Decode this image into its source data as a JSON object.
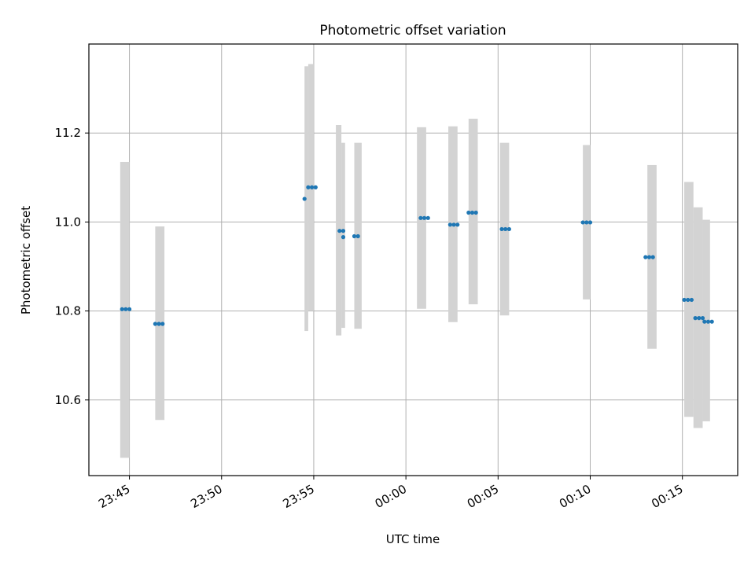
{
  "chart_data": {
    "type": "scatter",
    "title": "Photometric offset variation",
    "xlabel": "UTC time",
    "ylabel": "Photometric offset",
    "x_unit": "minutes",
    "xlim": [
      "23:42:48",
      "00:18:00"
    ],
    "ylim": [
      10.43,
      11.4
    ],
    "grid": true,
    "x_tick_labels": [
      "23:45",
      "23:50",
      "23:55",
      "00:00",
      "00:05",
      "00:10",
      "00:15"
    ],
    "y_tick_values": [
      10.6,
      10.8,
      11.0,
      11.2
    ],
    "y_tick_labels": [
      "10.6",
      "10.8",
      "11.0",
      "11.2"
    ],
    "point_color": "#1f77b4",
    "band_color": "#d3d3d3",
    "uncertainty_bands": [
      {
        "start": "23:44:30",
        "end": "23:45:00",
        "low": 10.47,
        "high": 11.135
      },
      {
        "start": "23:46:24",
        "end": "23:46:54",
        "low": 10.555,
        "high": 10.99
      },
      {
        "start": "23:54:30",
        "end": "23:54:42",
        "low": 10.755,
        "high": 11.35
      },
      {
        "start": "23:54:42",
        "end": "23:55:00",
        "low": 10.8,
        "high": 11.355
      },
      {
        "start": "23:56:12",
        "end": "23:56:30",
        "low": 10.745,
        "high": 11.218
      },
      {
        "start": "23:56:30",
        "end": "23:56:42",
        "low": 10.762,
        "high": 11.178
      },
      {
        "start": "23:57:12",
        "end": "23:57:36",
        "low": 10.76,
        "high": 11.178
      },
      {
        "start": "00:00:36",
        "end": "00:01:06",
        "low": 10.805,
        "high": 11.213
      },
      {
        "start": "00:02:18",
        "end": "00:02:48",
        "low": 10.775,
        "high": 11.215
      },
      {
        "start": "00:03:24",
        "end": "00:03:54",
        "low": 10.815,
        "high": 11.232
      },
      {
        "start": "00:05:06",
        "end": "00:05:36",
        "low": 10.79,
        "high": 11.178
      },
      {
        "start": "00:09:36",
        "end": "00:10:00",
        "low": 10.826,
        "high": 11.173
      },
      {
        "start": "00:13:06",
        "end": "00:13:36",
        "low": 10.715,
        "high": 11.128
      },
      {
        "start": "00:15:06",
        "end": "00:15:36",
        "low": 10.562,
        "high": 11.09
      },
      {
        "start": "00:15:36",
        "end": "00:16:06",
        "low": 10.537,
        "high": 11.033
      },
      {
        "start": "00:16:06",
        "end": "00:16:30",
        "low": 10.552,
        "high": 11.005
      }
    ],
    "series": [
      {
        "points": [
          {
            "x": "23:44:36",
            "y": 10.804
          },
          {
            "x": "23:44:48",
            "y": 10.804
          },
          {
            "x": "23:45:00",
            "y": 10.804
          },
          {
            "x": "23:46:24",
            "y": 10.771
          },
          {
            "x": "23:46:36",
            "y": 10.771
          },
          {
            "x": "23:46:48",
            "y": 10.771
          },
          {
            "x": "23:54:30",
            "y": 11.052
          },
          {
            "x": "23:54:42",
            "y": 11.078
          },
          {
            "x": "23:54:54",
            "y": 11.078
          },
          {
            "x": "23:55:06",
            "y": 11.078
          },
          {
            "x": "23:56:24",
            "y": 10.98
          },
          {
            "x": "23:56:36",
            "y": 10.98
          },
          {
            "x": "23:56:36",
            "y": 10.966
          },
          {
            "x": "23:57:12",
            "y": 10.968
          },
          {
            "x": "23:57:24",
            "y": 10.968
          },
          {
            "x": "00:00:48",
            "y": 11.009
          },
          {
            "x": "00:01:00",
            "y": 11.009
          },
          {
            "x": "00:01:12",
            "y": 11.009
          },
          {
            "x": "00:02:24",
            "y": 10.994
          },
          {
            "x": "00:02:36",
            "y": 10.994
          },
          {
            "x": "00:02:48",
            "y": 10.994
          },
          {
            "x": "00:03:24",
            "y": 11.021
          },
          {
            "x": "00:03:36",
            "y": 11.021
          },
          {
            "x": "00:03:48",
            "y": 11.021
          },
          {
            "x": "00:05:12",
            "y": 10.984
          },
          {
            "x": "00:05:24",
            "y": 10.984
          },
          {
            "x": "00:05:36",
            "y": 10.984
          },
          {
            "x": "00:09:36",
            "y": 10.999
          },
          {
            "x": "00:09:48",
            "y": 10.999
          },
          {
            "x": "00:10:00",
            "y": 10.999
          },
          {
            "x": "00:13:00",
            "y": 10.921
          },
          {
            "x": "00:13:12",
            "y": 10.921
          },
          {
            "x": "00:13:24",
            "y": 10.921
          },
          {
            "x": "00:15:06",
            "y": 10.825
          },
          {
            "x": "00:15:18",
            "y": 10.825
          },
          {
            "x": "00:15:30",
            "y": 10.825
          },
          {
            "x": "00:15:42",
            "y": 10.784
          },
          {
            "x": "00:15:54",
            "y": 10.784
          },
          {
            "x": "00:16:06",
            "y": 10.784
          },
          {
            "x": "00:16:12",
            "y": 10.776
          },
          {
            "x": "00:16:24",
            "y": 10.776
          },
          {
            "x": "00:16:36",
            "y": 10.776
          }
        ]
      }
    ]
  }
}
